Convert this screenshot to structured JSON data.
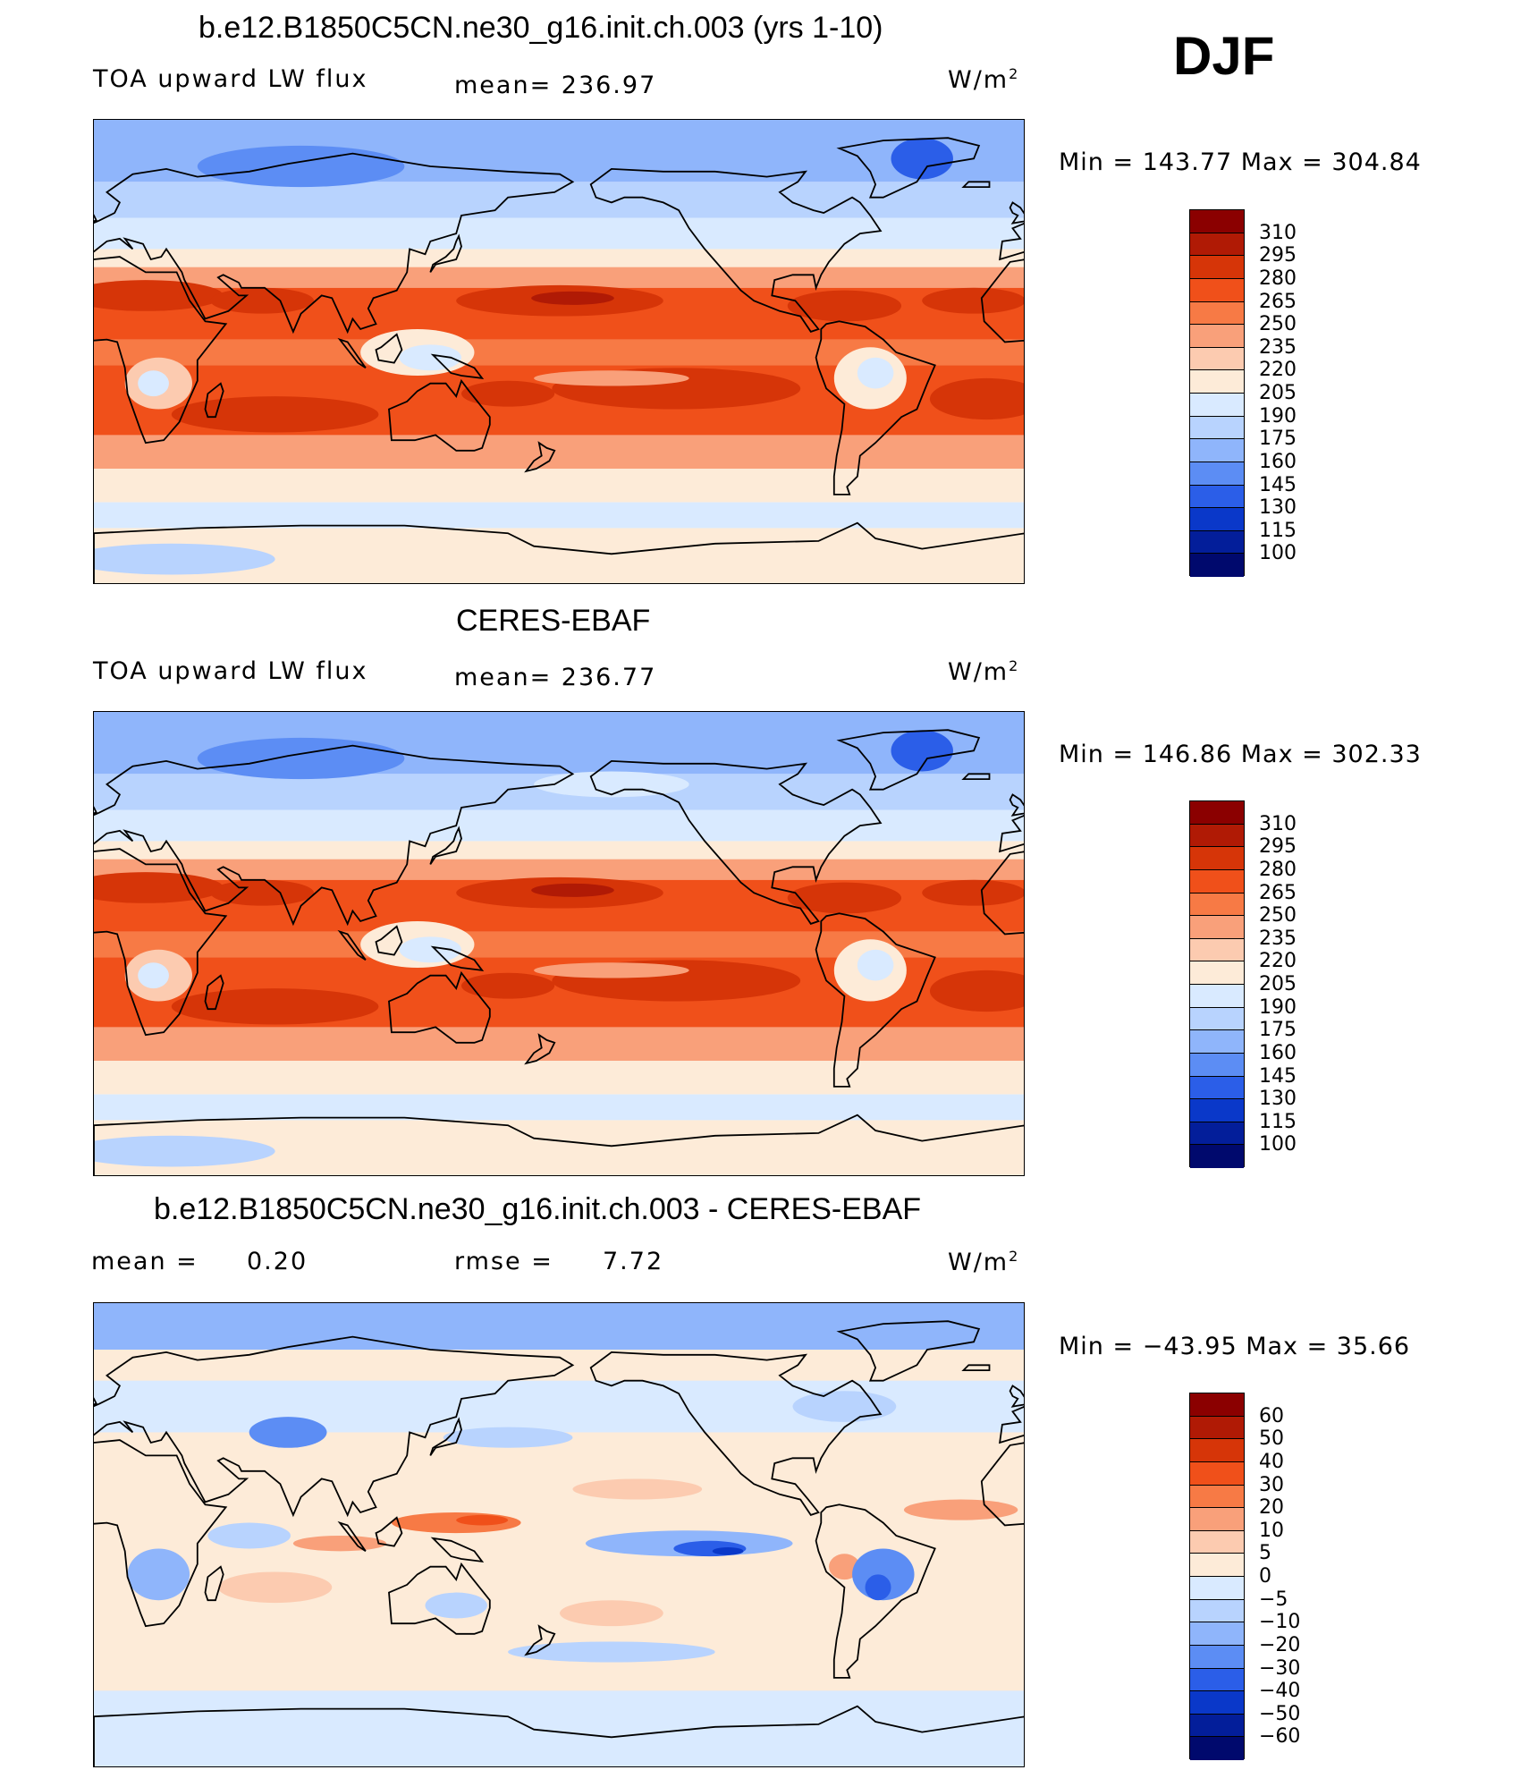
{
  "season": "DJF",
  "units_main": "W/m",
  "units_sup": "2",
  "panels": [
    {
      "title": "b.e12.B1850C5CN.ne30_g16.init.ch.003 (yrs 1-10)",
      "left_label": "TOA upward LW flux",
      "center_label": "mean= 236.97",
      "minmax": "Min = 143.77 Max = 304.84",
      "levels": [
        "310",
        "295",
        "280",
        "265",
        "250",
        "235",
        "220",
        "205",
        "190",
        "175",
        "160",
        "145",
        "130",
        "115",
        "100"
      ],
      "colors": [
        "#8b0000",
        "#b01a05",
        "#d63508",
        "#f0501a",
        "#f77a45",
        "#f9a07a",
        "#fccbb0",
        "#fdebd8",
        "#d9eaff",
        "#b8d3fe",
        "#8fb5fb",
        "#5c8df4",
        "#2b5ee8",
        "#0a38c9",
        "#031e9a",
        "#00096d"
      ]
    },
    {
      "title": "CERES-EBAF",
      "left_label": "TOA upward LW flux",
      "center_label": "mean= 236.77",
      "minmax": "Min = 146.86 Max = 302.33",
      "levels": [
        "310",
        "295",
        "280",
        "265",
        "250",
        "235",
        "220",
        "205",
        "190",
        "175",
        "160",
        "145",
        "130",
        "115",
        "100"
      ],
      "colors": [
        "#8b0000",
        "#b01a05",
        "#d63508",
        "#f0501a",
        "#f77a45",
        "#f9a07a",
        "#fccbb0",
        "#fdebd8",
        "#d9eaff",
        "#b8d3fe",
        "#8fb5fb",
        "#5c8df4",
        "#2b5ee8",
        "#0a38c9",
        "#031e9a",
        "#00096d"
      ]
    },
    {
      "title": "b.e12.B1850C5CN.ne30_g16.init.ch.003 - CERES-EBAF",
      "left_label": "mean =",
      "left_value": "0.20",
      "center_label": "rmse =",
      "center_value": "7.72",
      "minmax": "Min = −43.95 Max = 35.66",
      "levels": [
        "60",
        "50",
        "40",
        "30",
        "20",
        "10",
        "5",
        "0",
        "−5",
        "−10",
        "−20",
        "−30",
        "−40",
        "−50",
        "−60"
      ],
      "colors": [
        "#8b0000",
        "#b01a05",
        "#d63508",
        "#f0501a",
        "#f77a45",
        "#f9a07a",
        "#fccbb0",
        "#fdebd8",
        "#d9eaff",
        "#b8d3fe",
        "#8fb5fb",
        "#5c8df4",
        "#2b5ee8",
        "#0a38c9",
        "#031e9a",
        "#00096d"
      ]
    }
  ],
  "chart_data": [
    {
      "type": "heatmap",
      "title": "b.e12.B1850C5CN.ne30_g16.init.ch.003 (yrs 1-10)",
      "variable": "TOA upward LW flux",
      "units": "W/m2",
      "mean": 236.97,
      "min": 143.77,
      "max": 304.84,
      "contour_levels": [
        100,
        115,
        130,
        145,
        160,
        175,
        190,
        205,
        220,
        235,
        250,
        265,
        280,
        295,
        310
      ]
    },
    {
      "type": "heatmap",
      "title": "CERES-EBAF",
      "variable": "TOA upward LW flux",
      "units": "W/m2",
      "mean": 236.77,
      "min": 146.86,
      "max": 302.33,
      "contour_levels": [
        100,
        115,
        130,
        145,
        160,
        175,
        190,
        205,
        220,
        235,
        250,
        265,
        280,
        295,
        310
      ]
    },
    {
      "type": "heatmap",
      "title": "b.e12.B1850C5CN.ne30_g16.init.ch.003 - CERES-EBAF",
      "units": "W/m2",
      "mean": 0.2,
      "rmse": 7.72,
      "min": -43.95,
      "max": 35.66,
      "contour_levels": [
        -60,
        -50,
        -40,
        -30,
        -20,
        -10,
        -5,
        0,
        5,
        10,
        20,
        30,
        40,
        50,
        60
      ]
    }
  ]
}
